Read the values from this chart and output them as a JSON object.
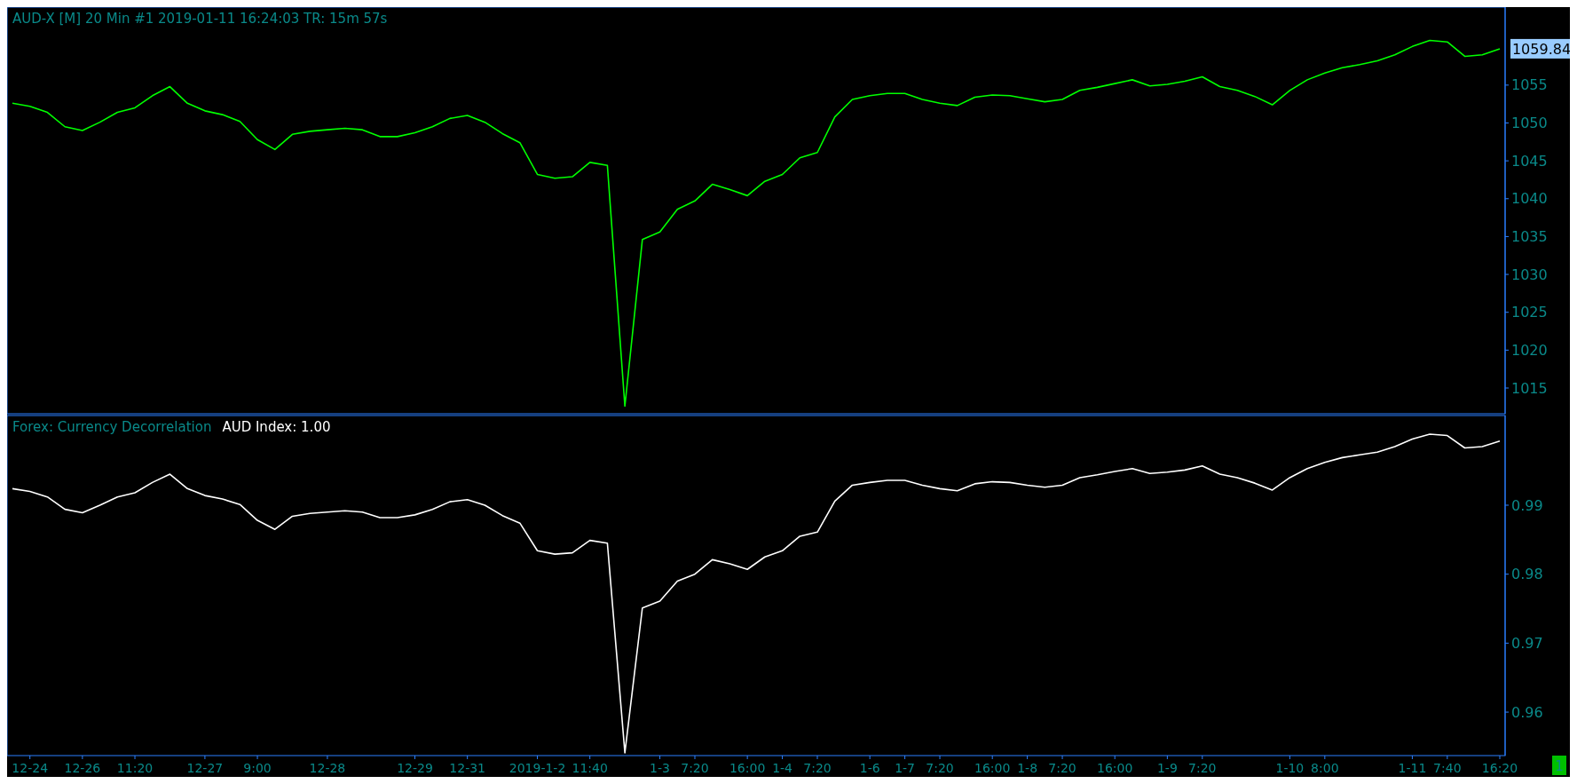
{
  "chart_data": [
    {
      "type": "line",
      "title": "AUD-X [M]  20 Min   #1 2019-01-11 16:24:03 TR: 15m 57s",
      "categories": [
        null,
        null,
        null,
        null,
        null,
        null,
        null,
        null,
        null,
        null,
        null,
        null,
        null,
        null,
        null,
        null,
        null,
        null,
        null,
        null,
        null,
        null,
        null,
        null,
        null,
        null,
        null,
        null,
        null,
        null,
        null,
        null,
        null,
        null,
        null,
        null,
        null,
        null,
        null,
        null,
        null,
        null,
        null,
        null,
        null,
        null,
        null,
        null,
        null,
        null,
        null,
        null,
        null,
        null,
        null,
        null,
        null,
        null,
        null,
        null,
        null,
        null,
        null,
        null,
        null,
        null,
        null,
        null,
        null,
        null,
        null,
        null,
        null,
        null,
        null,
        null,
        null,
        null,
        null,
        null,
        null,
        null,
        null,
        null,
        null,
        null
      ],
      "series": [
        {
          "color": "#00ff00",
          "values": [
            1052.6,
            1052.2,
            1051.4,
            1049.5,
            1049.0,
            1050.1,
            1051.4,
            1052.0,
            1053.6,
            1054.8,
            1052.6,
            1051.6,
            1051.1,
            1050.2,
            1047.8,
            1046.5,
            1048.5,
            1048.9,
            1049.1,
            1049.3,
            1049.1,
            1048.2,
            1048.2,
            1048.7,
            1049.5,
            1050.6,
            1051.0,
            1050.1,
            1048.6,
            1047.4,
            1043.2,
            1042.7,
            1042.9,
            1044.8,
            1044.4,
            1012.6,
            1034.6,
            1035.6,
            1038.6,
            1039.7,
            1041.9,
            1041.2,
            1040.4,
            1042.3,
            1043.2,
            1045.4,
            1046.1,
            1050.8,
            1053.1,
            1053.6,
            1053.9,
            1053.9,
            1053.1,
            1052.6,
            1052.3,
            1053.4,
            1053.7,
            1053.6,
            1053.2,
            1052.8,
            1053.1,
            1054.3,
            1054.7,
            1055.2,
            1055.7,
            1054.9,
            1055.1,
            1055.5,
            1056.1,
            1054.8,
            1054.3,
            1053.5,
            1052.4,
            1054.3,
            1055.7,
            1056.6,
            1057.3,
            1057.7,
            1058.2,
            1059.0,
            1060.1,
            1060.9,
            1060.7,
            1058.8,
            1059.0,
            1059.8
          ]
        }
      ],
      "ylim": [
        1011.6,
        1065.3
      ],
      "yticks": [
        1015,
        1020,
        1025,
        1030,
        1035,
        1040,
        1045,
        1050,
        1055
      ],
      "annotations": [
        "1059.84"
      ],
      "tick_labels": "y",
      "grid": false,
      "legend": false,
      "marker": "none",
      "line_style": "solid"
    },
    {
      "type": "line",
      "title": "Forex: Currency Decorrelation",
      "categories": [
        null,
        "12-24",
        null,
        null,
        "12-26",
        null,
        null,
        "11:20",
        null,
        null,
        null,
        "12-27",
        null,
        null,
        "9:00",
        null,
        null,
        null,
        "12-28",
        null,
        null,
        null,
        null,
        "12-29",
        null,
        null,
        "12-31",
        null,
        null,
        null,
        "2019-1-2",
        null,
        null,
        "11:40",
        null,
        null,
        null,
        "1-3",
        null,
        "7:20",
        null,
        null,
        "16:00",
        null,
        "1-4",
        null,
        "7:20",
        null,
        null,
        "1-6",
        null,
        "1-7",
        null,
        "7:20",
        null,
        null,
        "16:00",
        null,
        "1-8",
        null,
        "7:20",
        null,
        null,
        "16:00",
        null,
        null,
        "1-9",
        null,
        "7:20",
        null,
        null,
        null,
        null,
        "1-10",
        null,
        "8:00",
        null,
        null,
        null,
        null,
        "1-11",
        null,
        "7:40",
        null,
        null,
        "16:20"
      ],
      "series": [
        {
          "name": "AUD Index: 1.00",
          "color": "#ffffff",
          "values": [
            0.9924,
            0.992,
            0.9912,
            0.9894,
            0.9889,
            0.99,
            0.9912,
            0.9918,
            0.9933,
            0.9945,
            0.9924,
            0.9914,
            0.9909,
            0.9901,
            0.9878,
            0.9865,
            0.9884,
            0.9888,
            0.989,
            0.9892,
            0.989,
            0.9882,
            0.9882,
            0.9886,
            0.9894,
            0.9905,
            0.9908,
            0.99,
            0.9885,
            0.9874,
            0.9834,
            0.9829,
            0.9831,
            0.9849,
            0.9845,
            0.9541,
            0.9751,
            0.9761,
            0.979,
            0.98,
            0.9821,
            0.9815,
            0.9807,
            0.9825,
            0.9834,
            0.9855,
            0.9861,
            0.9906,
            0.9929,
            0.9933,
            0.9936,
            0.9936,
            0.9929,
            0.9924,
            0.9921,
            0.9931,
            0.9934,
            0.9933,
            0.9929,
            0.9926,
            0.9929,
            0.994,
            0.9944,
            0.9949,
            0.9953,
            0.9946,
            0.9948,
            0.9951,
            0.9957,
            0.9945,
            0.994,
            0.9932,
            0.9922,
            0.994,
            0.9953,
            0.9962,
            0.9969,
            0.9973,
            0.9977,
            0.9985,
            0.9996,
            1.0003,
            1.0001,
            0.9983,
            0.9985,
            0.9993
          ]
        }
      ],
      "ylim": [
        0.9537,
        1.003
      ],
      "yticks": [
        0.96,
        0.97,
        0.98,
        0.99
      ],
      "annotations": [
        "1"
      ],
      "grid": false,
      "legend": false,
      "marker": "none",
      "line_style": "solid"
    }
  ]
}
